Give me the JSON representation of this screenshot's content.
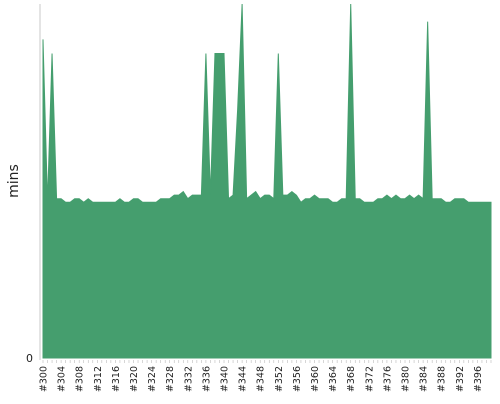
{
  "chart_data": {
    "type": "area",
    "title": "",
    "xlabel": "",
    "ylabel": "mins",
    "y_tick_labels": [
      "0"
    ],
    "ylim": [
      0,
      100
    ],
    "grid": false,
    "color": "#459e6e",
    "x": [
      300,
      301,
      302,
      303,
      304,
      305,
      306,
      307,
      308,
      309,
      310,
      311,
      312,
      313,
      314,
      315,
      316,
      317,
      318,
      319,
      320,
      321,
      322,
      323,
      324,
      325,
      326,
      327,
      328,
      329,
      330,
      331,
      332,
      333,
      334,
      335,
      336,
      337,
      338,
      339,
      340,
      341,
      342,
      343,
      344,
      345,
      346,
      347,
      348,
      349,
      350,
      351,
      352,
      353,
      354,
      355,
      356,
      357,
      358,
      359,
      360,
      361,
      362,
      363,
      364,
      365,
      366,
      367,
      368,
      369,
      370,
      371,
      372,
      373,
      374,
      375,
      376,
      377,
      378,
      379,
      380,
      381,
      382,
      383,
      384,
      385,
      386,
      387,
      388,
      389,
      390,
      391,
      392,
      393,
      394,
      395,
      396,
      397,
      398,
      399
    ],
    "x_tick_labels": [
      "#300",
      "#304",
      "#308",
      "#312",
      "#316",
      "#320",
      "#324",
      "#328",
      "#332",
      "#336",
      "#340",
      "#344",
      "#348",
      "#352",
      "#356",
      "#360",
      "#364",
      "#368",
      "#372",
      "#376",
      "#380",
      "#384",
      "#388",
      "#392",
      "#396"
    ],
    "series": [
      {
        "values": [
          90,
          44,
          86,
          45,
          45,
          44,
          44,
          45,
          45,
          44,
          45,
          44,
          44,
          44,
          44,
          44,
          44,
          45,
          44,
          44,
          45,
          45,
          44,
          44,
          44,
          44,
          45,
          45,
          45,
          46,
          46,
          47,
          45,
          46,
          46,
          46,
          86,
          46,
          86,
          86,
          86,
          45,
          46,
          70,
          100,
          45,
          46,
          47,
          45,
          46,
          46,
          45,
          86,
          46,
          46,
          47,
          46,
          44,
          45,
          45,
          46,
          45,
          45,
          45,
          44,
          44,
          45,
          45,
          100,
          45,
          45,
          44,
          44,
          44,
          45,
          45,
          46,
          45,
          46,
          45,
          45,
          46,
          45,
          46,
          45,
          95,
          45,
          45,
          45,
          44,
          44,
          45,
          45,
          45,
          44,
          44,
          44,
          44,
          44,
          44
        ]
      }
    ]
  }
}
